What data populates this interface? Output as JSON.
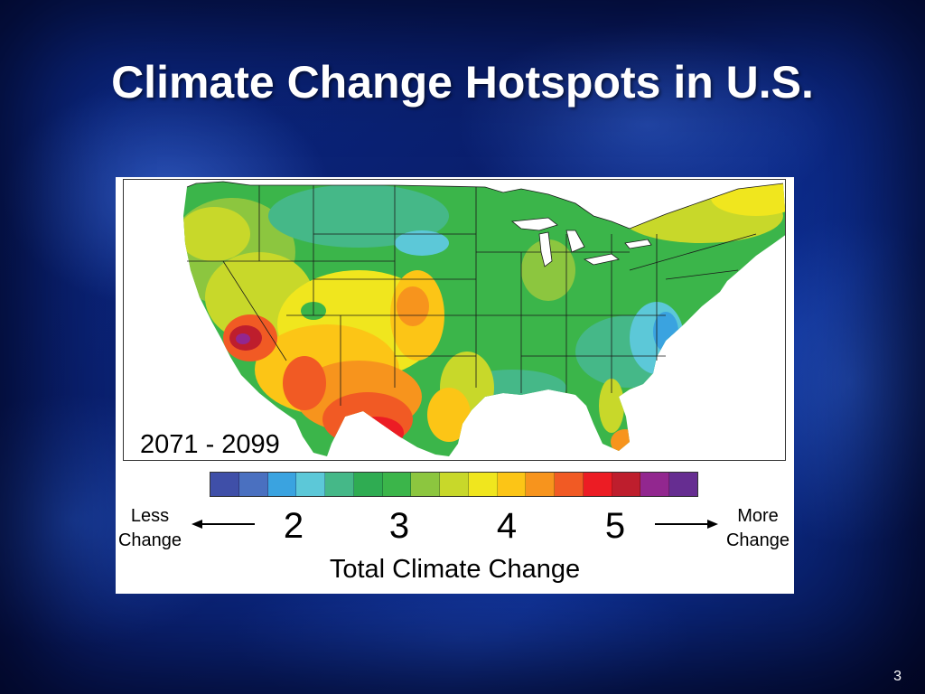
{
  "slide": {
    "title": "Climate Change Hotspots in U.S.",
    "page_number": "3"
  },
  "figure": {
    "period": "2071 - 2099",
    "less_label_line1": "Less",
    "less_label_line2": "Change",
    "more_label_line1": "More",
    "more_label_line2": "Change",
    "axis_title": "Total Climate Change",
    "ticks": [
      "2",
      "3",
      "4",
      "5"
    ],
    "colorbar": [
      "#3f4fa8",
      "#4a70c0",
      "#3aa3e0",
      "#5cc8d8",
      "#45b888",
      "#2fac52",
      "#3bb54a",
      "#8cc63f",
      "#c8d82a",
      "#f0e61e",
      "#fcc516",
      "#f7941d",
      "#f15a24",
      "#ec1c24",
      "#be1e2d",
      "#92278f",
      "#662d91"
    ]
  },
  "map_colors": {
    "ocean": "#ffffff",
    "base": "#3bb54a",
    "borders": "#1a1a1a"
  }
}
